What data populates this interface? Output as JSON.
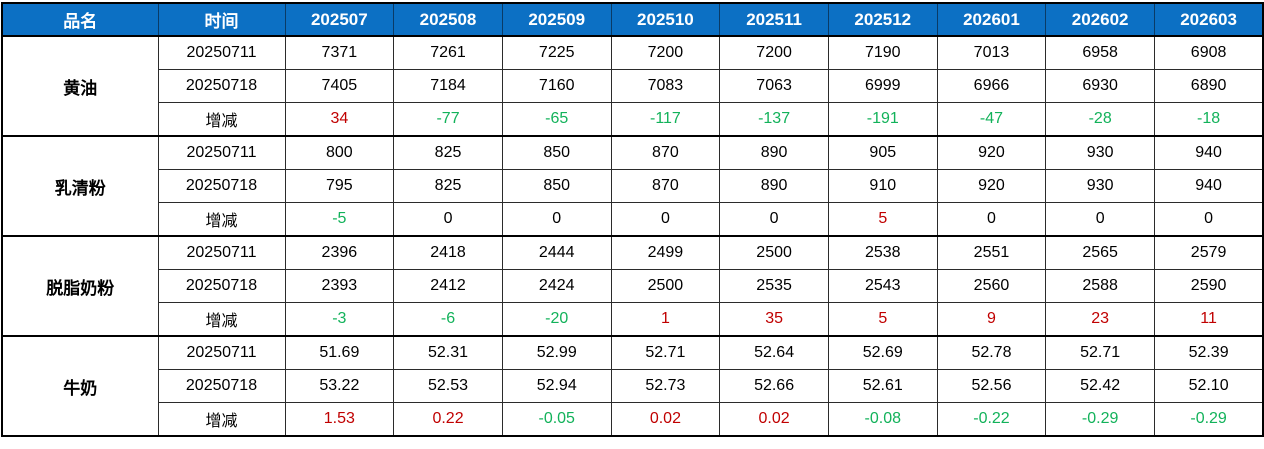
{
  "table": {
    "columns": [
      {
        "label": "品名"
      },
      {
        "label": "时间"
      },
      {
        "label": "202507"
      },
      {
        "label": "202508"
      },
      {
        "label": "202509"
      },
      {
        "label": "202510"
      },
      {
        "label": "202511"
      },
      {
        "label": "202512"
      },
      {
        "label": "202601"
      },
      {
        "label": "202602"
      },
      {
        "label": "202603"
      }
    ],
    "change_row_label": "增减",
    "colors": {
      "header_bg": "#0c70c4",
      "header_text": "#ffffff",
      "positive_change": "#c00000",
      "negative_change": "#12b25a",
      "zero_change": "#000000",
      "border": "#000000",
      "cell_bg": "#ffffff"
    },
    "groups": [
      {
        "name": "黄油",
        "rows": [
          {
            "label": "20250711",
            "type": "price",
            "values": [
              "7371",
              "7261",
              "7225",
              "7200",
              "7200",
              "7190",
              "7013",
              "6958",
              "6908"
            ]
          },
          {
            "label": "20250718",
            "type": "price",
            "values": [
              "7405",
              "7184",
              "7160",
              "7083",
              "7063",
              "6999",
              "6966",
              "6930",
              "6890"
            ]
          },
          {
            "label": "增减",
            "type": "change",
            "values": [
              "34",
              "-77",
              "-65",
              "-117",
              "-137",
              "-191",
              "-47",
              "-28",
              "-18"
            ]
          }
        ]
      },
      {
        "name": "乳清粉",
        "rows": [
          {
            "label": "20250711",
            "type": "price",
            "values": [
              "800",
              "825",
              "850",
              "870",
              "890",
              "905",
              "920",
              "930",
              "940"
            ]
          },
          {
            "label": "20250718",
            "type": "price",
            "values": [
              "795",
              "825",
              "850",
              "870",
              "890",
              "910",
              "920",
              "930",
              "940"
            ]
          },
          {
            "label": "增减",
            "type": "change",
            "values": [
              "-5",
              "0",
              "0",
              "0",
              "0",
              "5",
              "0",
              "0",
              "0"
            ]
          }
        ]
      },
      {
        "name": "脱脂奶粉",
        "rows": [
          {
            "label": "20250711",
            "type": "price",
            "values": [
              "2396",
              "2418",
              "2444",
              "2499",
              "2500",
              "2538",
              "2551",
              "2565",
              "2579"
            ]
          },
          {
            "label": "20250718",
            "type": "price",
            "values": [
              "2393",
              "2412",
              "2424",
              "2500",
              "2535",
              "2543",
              "2560",
              "2588",
              "2590"
            ]
          },
          {
            "label": "增减",
            "type": "change",
            "values": [
              "-3",
              "-6",
              "-20",
              "1",
              "35",
              "5",
              "9",
              "23",
              "11"
            ]
          }
        ]
      },
      {
        "name": "牛奶",
        "rows": [
          {
            "label": "20250711",
            "type": "price",
            "values": [
              "51.69",
              "52.31",
              "52.99",
              "52.71",
              "52.64",
              "52.69",
              "52.78",
              "52.71",
              "52.39"
            ]
          },
          {
            "label": "20250718",
            "type": "price",
            "values": [
              "53.22",
              "52.53",
              "52.94",
              "52.73",
              "52.66",
              "52.61",
              "52.56",
              "52.42",
              "52.10"
            ]
          },
          {
            "label": "增减",
            "type": "change",
            "values": [
              "1.53",
              "0.22",
              "-0.05",
              "0.02",
              "0.02",
              "-0.08",
              "-0.22",
              "-0.29",
              "-0.29"
            ]
          }
        ]
      }
    ]
  }
}
